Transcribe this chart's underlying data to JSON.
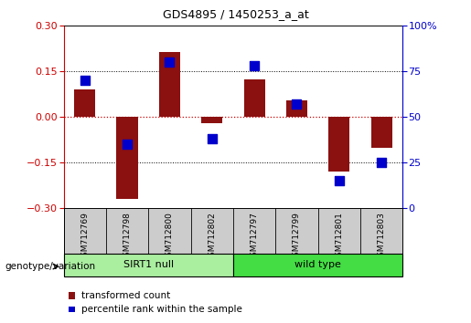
{
  "title": "GDS4895 / 1450253_a_at",
  "samples": [
    "GSM712769",
    "GSM712798",
    "GSM712800",
    "GSM712802",
    "GSM712797",
    "GSM712799",
    "GSM712801",
    "GSM712803"
  ],
  "transformed_count": [
    0.09,
    -0.27,
    0.215,
    -0.02,
    0.125,
    0.055,
    -0.18,
    -0.1
  ],
  "percentile_rank": [
    70,
    35,
    80,
    38,
    78,
    57,
    15,
    25
  ],
  "groups": [
    {
      "label": "SIRT1 null",
      "start": 0,
      "end": 4,
      "color": "#AAEEA0"
    },
    {
      "label": "wild type",
      "start": 4,
      "end": 8,
      "color": "#44DD44"
    }
  ],
  "group_label": "genotype/variation",
  "ylim_left": [
    -0.3,
    0.3
  ],
  "ylim_right": [
    0,
    100
  ],
  "yticks_left": [
    -0.3,
    -0.15,
    0,
    0.15,
    0.3
  ],
  "yticks_right": [
    0,
    25,
    50,
    75,
    100
  ],
  "bar_color": "#8B1010",
  "dot_color": "#0000CC",
  "hline_color": "#CC0000",
  "legend_bar_label": "transformed count",
  "legend_dot_label": "percentile rank within the sample",
  "bar_width": 0.5,
  "dot_size": 55,
  "sample_bg": "#CCCCCC",
  "title_fontsize": 9,
  "axis_fontsize": 8,
  "label_fontsize": 7.5,
  "legend_fontsize": 7.5
}
